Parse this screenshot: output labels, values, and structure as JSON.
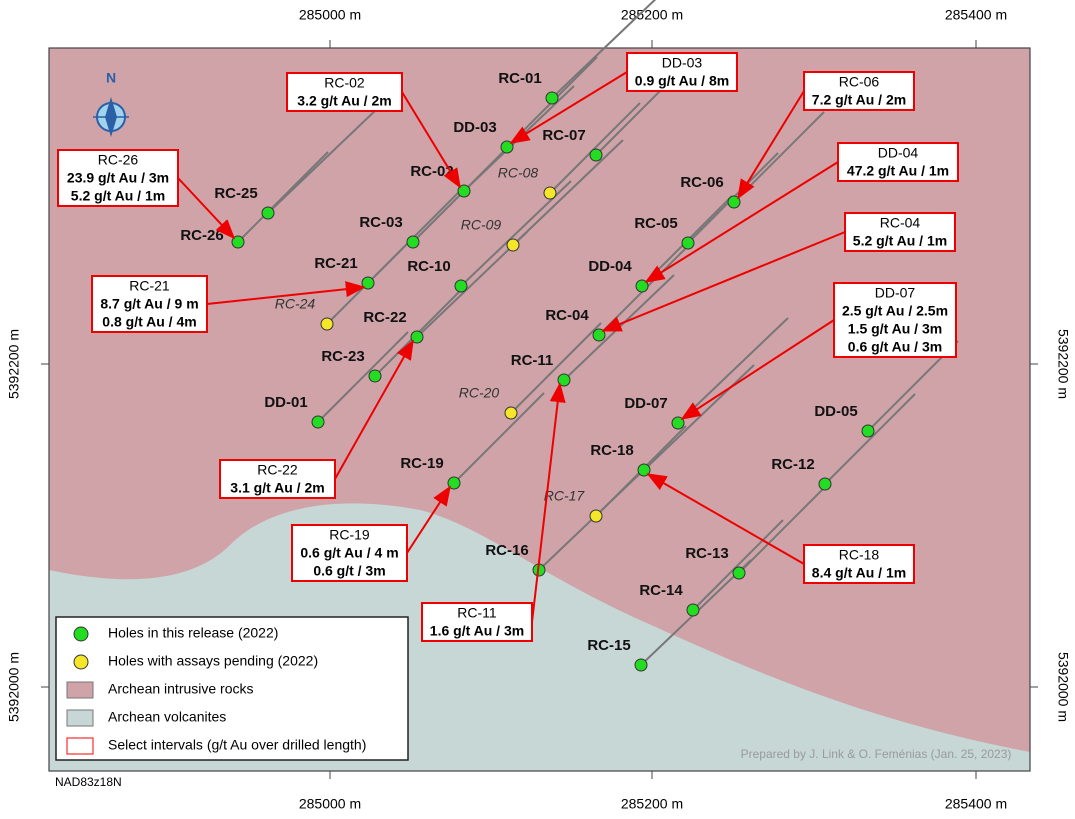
{
  "axes": {
    "top": [
      "285000 m",
      "285200 m",
      "285400 m"
    ],
    "bottom": [
      "285000 m",
      "285200 m",
      "285400 m"
    ],
    "left": [
      "5392200 m",
      "5392000 m"
    ],
    "right": [
      "5392200 m",
      "5392000 m"
    ]
  },
  "north": "N",
  "holes": [
    {
      "label": "RC-01",
      "color": "#22dd22"
    },
    {
      "label": "DD-03",
      "color": "#22dd22"
    },
    {
      "label": "RC-07",
      "color": "#22dd22"
    },
    {
      "label": "RC-02",
      "color": "#22dd22"
    },
    {
      "label": "RC-08",
      "color": "#f5e62a"
    },
    {
      "label": "RC-06",
      "color": "#22dd22"
    },
    {
      "label": "RC-25",
      "color": "#22dd22"
    },
    {
      "label": "RC-26",
      "color": "#22dd22"
    },
    {
      "label": "RC-03",
      "color": "#22dd22"
    },
    {
      "label": "RC-09",
      "color": "#f5e62a"
    },
    {
      "label": "RC-05",
      "color": "#22dd22"
    },
    {
      "label": "RC-21",
      "color": "#22dd22"
    },
    {
      "label": "RC-10",
      "color": "#22dd22"
    },
    {
      "label": "DD-04",
      "color": "#22dd22"
    },
    {
      "label": "RC-24",
      "color": "#f5e62a"
    },
    {
      "label": "RC-22",
      "color": "#22dd22"
    },
    {
      "label": "RC-04",
      "color": "#22dd22"
    },
    {
      "label": "RC-23",
      "color": "#22dd22"
    },
    {
      "label": "RC-11",
      "color": "#22dd22"
    },
    {
      "label": "RC-20",
      "color": "#f5e62a"
    },
    {
      "label": "DD-01",
      "color": "#22dd22"
    },
    {
      "label": "DD-07",
      "color": "#22dd22"
    },
    {
      "label": "DD-05",
      "color": "#22dd22"
    },
    {
      "label": "RC-19",
      "color": "#22dd22"
    },
    {
      "label": "RC-18",
      "color": "#22dd22"
    },
    {
      "label": "RC-12",
      "color": "#22dd22"
    },
    {
      "label": "RC-17",
      "color": "#f5e62a"
    },
    {
      "label": "RC-16",
      "color": "#22dd22"
    },
    {
      "label": "RC-13",
      "color": "#22dd22"
    },
    {
      "label": "RC-14",
      "color": "#22dd22"
    },
    {
      "label": "RC-15",
      "color": "#22dd22"
    }
  ],
  "callouts": [
    {
      "title": "RC-02",
      "lines": [
        "3.2 g/t Au / 2m"
      ]
    },
    {
      "title": "DD-03",
      "lines": [
        "0.9 g/t Au / 8m"
      ]
    },
    {
      "title": "RC-06",
      "lines": [
        "7.2 g/t Au / 2m"
      ]
    },
    {
      "title": "DD-04",
      "lines": [
        "47.2 g/t Au / 1m"
      ]
    },
    {
      "title": "RC-04",
      "lines": [
        "5.2 g/t Au / 1m"
      ]
    },
    {
      "title": "DD-07",
      "lines": [
        "2.5 g/t Au / 2.5m",
        "1.5 g/t Au / 3m",
        "0.6 g/t Au / 3m"
      ]
    },
    {
      "title": "RC-26",
      "lines": [
        "23.9 g/t Au / 3m",
        "5.2 g/t Au / 1m"
      ]
    },
    {
      "title": "RC-21",
      "lines": [
        "8.7 g/t Au / 9 m",
        "0.8 g/t Au / 4m"
      ]
    },
    {
      "title": "RC-22",
      "lines": [
        "3.1 g/t Au / 2m"
      ]
    },
    {
      "title": "RC-19",
      "lines": [
        "0.6 g/t Au / 4 m",
        "0.6 g/t  / 3m"
      ]
    },
    {
      "title": "RC-11",
      "lines": [
        "1.6 g/t Au / 3m"
      ]
    },
    {
      "title": "RC-18",
      "lines": [
        "8.4 g/t Au / 1m"
      ]
    }
  ],
  "legend": [
    {
      "label": "Holes in this release (2022)",
      "color": "#22dd22"
    },
    {
      "label": "Holes with assays pending (2022)",
      "color": "#f5e62a"
    },
    {
      "label": "Archean intrusive rocks",
      "color": "#cfa3a8"
    },
    {
      "label": "Archean volcanites",
      "color": "#c6d7d6"
    },
    {
      "label": "Select intervals (g/t Au over drilled length)",
      "color": "#ff0000"
    }
  ],
  "datum": "NAD83z18N",
  "credit": "Prepared by J. Link & O. Feménias (Jan. 25, 2023)"
}
